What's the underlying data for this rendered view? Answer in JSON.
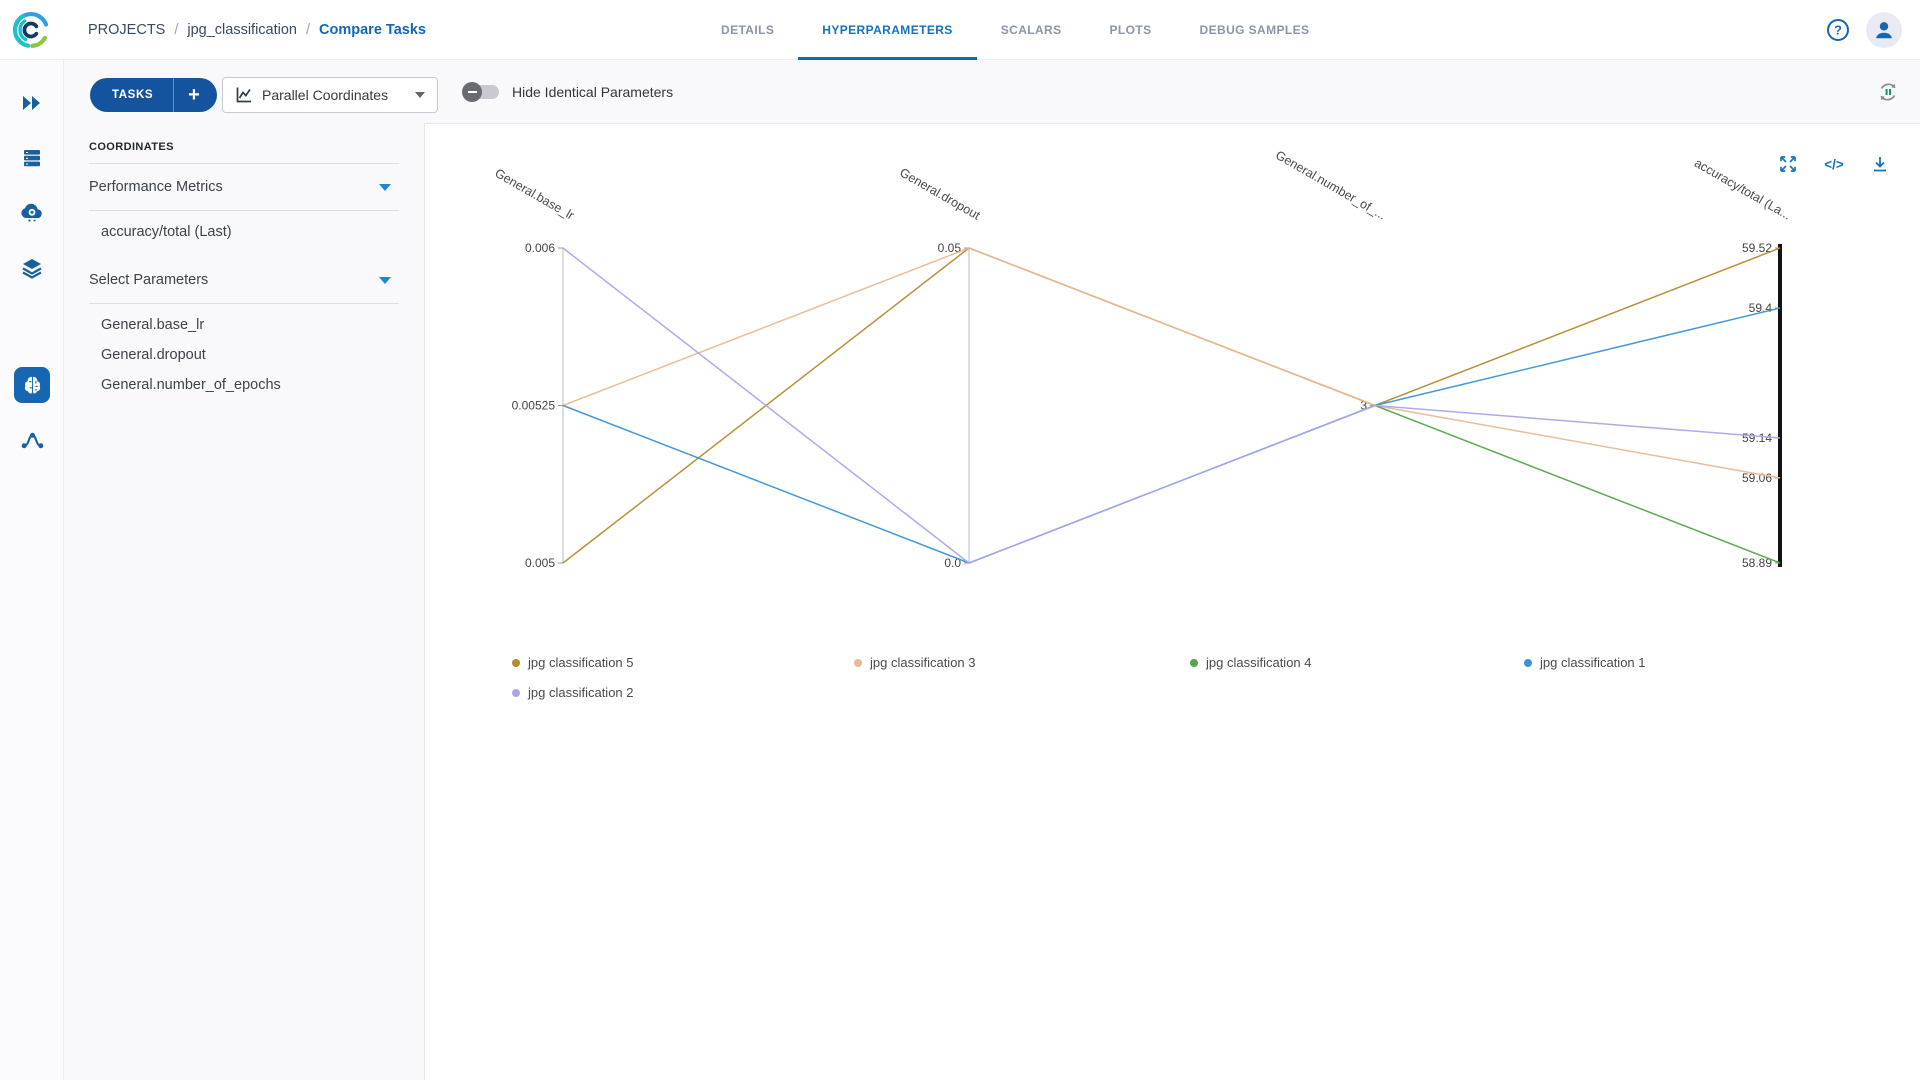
{
  "header": {
    "breadcrumb": [
      {
        "label": "PROJECTS",
        "active": false
      },
      {
        "label": "jpg_classification",
        "active": false
      },
      {
        "label": "Compare Tasks",
        "active": true
      }
    ],
    "tabs": [
      {
        "label": "DETAILS",
        "active": false
      },
      {
        "label": "HYPERPARAMETERS",
        "active": true
      },
      {
        "label": "SCALARS",
        "active": false
      },
      {
        "label": "PLOTS",
        "active": false
      },
      {
        "label": "DEBUG SAMPLES",
        "active": false
      }
    ],
    "help_icon": "help-icon",
    "avatar_icon": "user-avatar-icon"
  },
  "sidebar": {
    "icons": [
      "dashboard-icon",
      "queues-icon",
      "apps-icon",
      "datasets-icon",
      "experiments-icon",
      "pipelines-icon"
    ],
    "active_index": 4
  },
  "toolbar": {
    "tasks_button": "TASKS",
    "add_button": "+",
    "view_selector": "Parallel Coordinates",
    "view_selector_icon": "line-chart-icon",
    "toggle_label": "Hide Identical Parameters",
    "toggle_state": "off",
    "refresh_icon": "auto-refresh-icon"
  },
  "panel": {
    "title": "COORDINATES",
    "sections": [
      {
        "label": "Performance Metrics",
        "items": [
          "accuracy/total (Last)"
        ]
      },
      {
        "label": "Select Parameters",
        "items": [
          "General.base_lr",
          "General.dropout",
          "General.number_of_epochs"
        ]
      }
    ]
  },
  "chart_toolbar": [
    "maximize-icon",
    "embed-code-icon",
    "download-icon"
  ],
  "chart_data": {
    "type": "parallel-coordinates",
    "axes": [
      {
        "id": "base_lr",
        "label": "General.base_lr",
        "scale": "categorical",
        "ticks": [
          "0.005",
          "0.00525",
          "0.006"
        ],
        "line": "thin"
      },
      {
        "id": "dropout",
        "label": "General.dropout",
        "scale": "categorical",
        "ticks": [
          "0.0",
          "0.05"
        ],
        "line": "thin"
      },
      {
        "id": "epochs",
        "label": "General.number_of_...",
        "scale": "categorical",
        "ticks": [
          "3"
        ],
        "line": "none"
      },
      {
        "id": "accuracy",
        "label": "accuracy/total (La...",
        "scale": "linear",
        "min": 58.89,
        "max": 59.52,
        "ticks": [
          "58.89",
          "59.06",
          "59.14",
          "59.4",
          "59.52"
        ],
        "line": "thick"
      }
    ],
    "series": [
      {
        "name": "jpg classification 5",
        "color": "#b08c2e",
        "values": {
          "base_lr": "0.005",
          "dropout": "0.05",
          "epochs": "3",
          "accuracy": 59.52
        }
      },
      {
        "name": "jpg classification 3",
        "color": "#e8bb97",
        "values": {
          "base_lr": "0.00525",
          "dropout": "0.05",
          "epochs": "3",
          "accuracy": 59.06
        }
      },
      {
        "name": "jpg classification 4",
        "color": "#55a44c",
        "values": {
          "base_lr": null,
          "dropout": null,
          "epochs": "3",
          "accuracy": 58.89
        }
      },
      {
        "name": "jpg classification 1",
        "color": "#3d93d4",
        "values": {
          "base_lr": "0.00525",
          "dropout": "0.0",
          "epochs": "3",
          "accuracy": 59.4
        }
      },
      {
        "name": "jpg classification 2",
        "color": "#a9a5ec",
        "values": {
          "base_lr": "0.006",
          "dropout": "0.0",
          "epochs": "3",
          "accuracy": 59.14
        }
      }
    ],
    "legend_position": "bottom"
  }
}
